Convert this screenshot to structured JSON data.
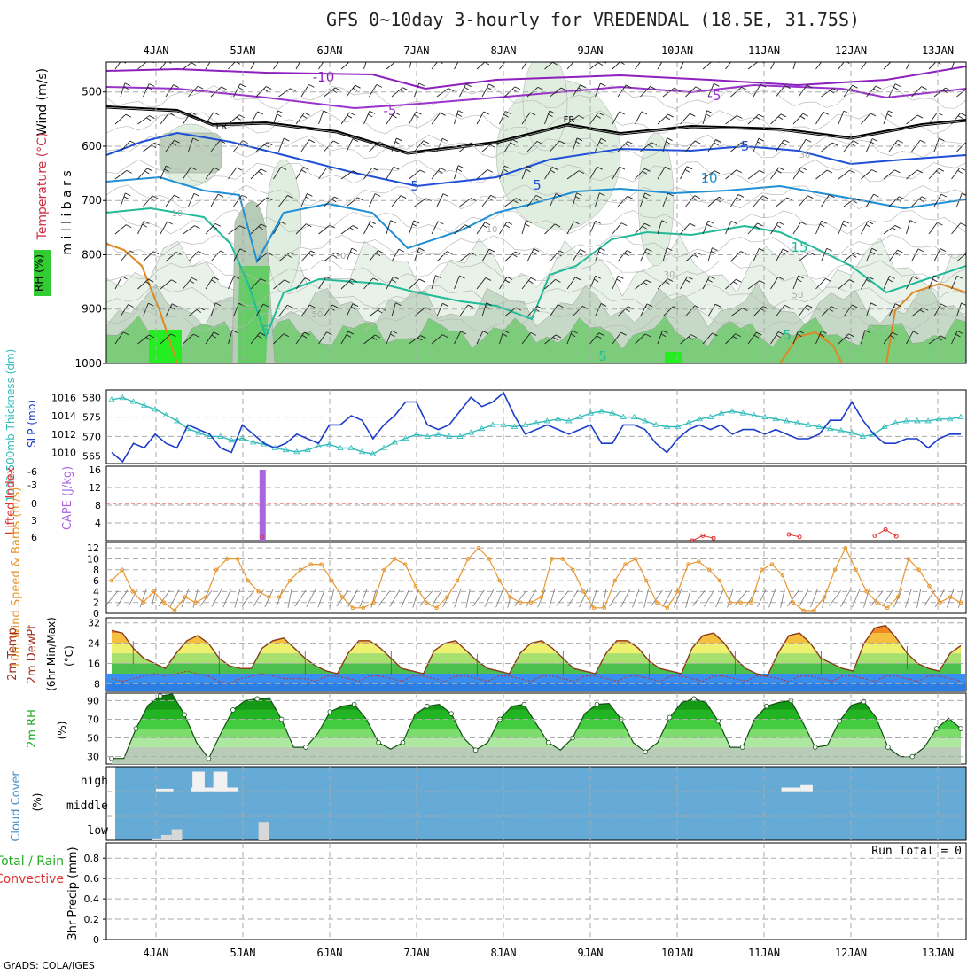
{
  "title": "GFS 0~10day 3-hourly for VREDENDAL (18.5E, 31.75S)",
  "footer": "GrADS: COLA/IGES",
  "date_labels": [
    "4JAN",
    "5JAN",
    "6JAN",
    "7JAN",
    "8JAN",
    "9JAN",
    "10JAN",
    "11JAN",
    "12JAN",
    "13JAN"
  ],
  "colors": {
    "grid": "#aaaaaa",
    "dark_blue": "#1a3cc8",
    "teal": "#33bbbb",
    "orange": "#e8962e",
    "purple": "#aa66dd",
    "red": "#e03030",
    "cloud": "#66aad6",
    "rh_green": "#22aa22"
  },
  "chart_data": [
    {
      "type": "heatmap",
      "name": "upper-air cross-section",
      "ylabel": "m i l l i b a r s",
      "side_labels": {
        "wind": "Wind (m/s)",
        "temperature": "Temperature (°C)",
        "rh": "RH (%)"
      },
      "y_ticks": [
        "500",
        "600",
        "700",
        "800",
        "900",
        "1000"
      ],
      "contour_labels": [
        "-10",
        "-5",
        "-5",
        "FR",
        "FR",
        "-5",
        "5",
        "5",
        "10",
        "10",
        "15",
        "5",
        "5",
        "5",
        "10",
        "30",
        "30",
        "50",
        "50",
        "30"
      ]
    },
    {
      "type": "line",
      "name": "SLP and 1000-500mb thickness",
      "ylabel_left": "1000-500mb Thickness (dm)",
      "ylabel_right": "SLP (mb)",
      "left_ticks": [
        "580",
        "575",
        "570",
        "565"
      ],
      "right_ticks": [
        "1016",
        "1014",
        "1012",
        "1010"
      ],
      "thickness_dm": [
        579.5,
        580,
        579,
        578,
        577,
        575.5,
        574,
        572,
        571,
        570,
        570,
        569,
        569.5,
        568.5,
        568,
        567,
        566.5,
        566,
        566.5,
        567.5,
        568,
        567,
        567,
        566,
        565.5,
        567,
        568.5,
        569.5,
        570.5,
        570,
        570.5,
        570,
        570,
        571,
        572,
        573,
        573,
        572.5,
        573,
        573.5,
        574,
        574.5,
        574,
        575,
        576,
        576.5,
        576,
        575,
        575,
        574,
        573,
        572.5,
        572.5,
        573.5,
        574.5,
        575,
        576,
        576.5,
        576,
        575.5,
        575,
        574.5,
        574,
        573.5,
        573,
        572.5,
        572,
        571.5,
        571,
        570,
        570.5,
        572.5,
        573.5,
        574,
        574,
        574,
        574.5,
        574.5,
        575
      ],
      "slp_mb": [
        1010,
        1009,
        1011,
        1010.5,
        1012,
        1011,
        1010.5,
        1013,
        1012.5,
        1012,
        1010.5,
        1010,
        1013,
        1012,
        1011,
        1010.5,
        1011,
        1012,
        1011.5,
        1011,
        1013,
        1013,
        1014,
        1013.5,
        1011.5,
        1013,
        1014,
        1015.5,
        1015.5,
        1013,
        1012.5,
        1013,
        1014.5,
        1016,
        1015,
        1015.5,
        1016.5,
        1014,
        1012,
        1012.5,
        1013,
        1012.5,
        1012,
        1012.5,
        1013,
        1011,
        1011,
        1013,
        1013,
        1012.5,
        1011,
        1010,
        1011.5,
        1012.5,
        1013,
        1012.5,
        1013,
        1012,
        1012.5,
        1012.5,
        1012,
        1012.5,
        1012,
        1011.5,
        1011.5,
        1012,
        1013.5,
        1013.5,
        1015.5,
        1013.5,
        1012,
        1011,
        1011,
        1011.5,
        1011.5,
        1010.5,
        1011.5,
        1012,
        1012
      ],
      "ylim_left": [
        563,
        582
      ],
      "ylim_right": [
        1008.8,
        1016.8
      ]
    },
    {
      "type": "bar",
      "name": "CAPE and Lifted Index",
      "ylabel_left": "Lifted Index",
      "ylabel_right": "CAPE (J/kg)",
      "left_ticks": [
        "-6",
        "-3",
        "0",
        "3",
        "6"
      ],
      "right_ticks": [
        "16",
        "12",
        "8",
        "4"
      ],
      "cape_bars": [
        {
          "time_index": 14,
          "value": 16
        }
      ],
      "lifted_index_points": [
        [
          54,
          6
        ],
        [
          55,
          5.2
        ],
        [
          56,
          5.6
        ],
        [
          63,
          5
        ],
        [
          64,
          5.4
        ],
        [
          71,
          5.2
        ],
        [
          72,
          4.2
        ],
        [
          73,
          5.3
        ]
      ],
      "ylim_cape": [
        0,
        16
      ]
    },
    {
      "type": "line",
      "name": "10m Wind Speed & Barbs",
      "ylabel": "10m Wind Speed & Barbs (m/s)",
      "y_ticks": [
        "12",
        "10",
        "8",
        "6",
        "4",
        "2",
        "0"
      ],
      "speed_ms": [
        6,
        8,
        4,
        2,
        4,
        2,
        0.5,
        3,
        2,
        3,
        8,
        10,
        10,
        6,
        4,
        3,
        3,
        6,
        8,
        9,
        9,
        6,
        3,
        1,
        1,
        2,
        8,
        10,
        9,
        5,
        2,
        1,
        3,
        6,
        10,
        12,
        10,
        6,
        3,
        2,
        2,
        3,
        10,
        10,
        8,
        4,
        1,
        1,
        6,
        9,
        10,
        6,
        2,
        1,
        4,
        9,
        9.5,
        8,
        6,
        2,
        2,
        2,
        8,
        9,
        7,
        2,
        0.5,
        0.5,
        3,
        8,
        12,
        8,
        4,
        2,
        1,
        3,
        10,
        8,
        5,
        2,
        3,
        2
      ],
      "ylim": [
        0,
        13
      ]
    },
    {
      "type": "area",
      "name": "2m Temp / 2m DewPt",
      "ylabel": "2m Temp 2m DewPt (6hr Min/Max) (°C)",
      "y_ticks": [
        "32",
        "24",
        "16",
        "8"
      ],
      "temp_c": [
        29,
        28,
        22,
        18,
        16,
        14,
        20,
        25,
        27,
        24,
        18,
        15,
        14,
        14,
        22,
        25,
        26,
        22,
        18,
        15,
        13,
        12,
        20,
        25,
        25,
        22,
        18,
        14,
        13,
        12,
        21,
        24,
        25,
        21,
        17,
        14,
        13,
        12,
        20,
        24,
        25,
        22,
        18,
        14,
        13,
        12,
        20,
        25,
        25,
        22,
        17,
        14,
        13,
        12,
        22,
        27,
        28,
        24,
        18,
        14,
        12,
        11,
        20,
        27,
        28,
        24,
        18,
        16,
        14,
        13,
        24,
        30,
        31,
        26,
        20,
        16,
        14,
        13,
        20,
        23
      ],
      "dewpt_c": [
        10,
        9,
        10,
        11,
        12,
        11,
        12,
        13,
        12,
        11,
        9,
        8,
        10,
        11,
        12,
        11,
        10,
        10,
        10,
        9,
        11,
        11,
        10,
        9,
        11,
        11,
        10,
        9,
        11,
        11,
        10,
        9,
        11,
        11,
        10,
        9,
        11,
        11,
        10,
        9,
        11,
        11,
        10,
        9,
        11,
        11,
        10,
        9,
        11,
        11,
        10,
        9,
        11,
        11,
        10,
        9,
        11,
        11,
        10,
        9,
        11,
        11,
        10,
        9,
        11,
        11,
        10,
        9,
        11,
        11,
        10,
        9,
        11,
        11,
        10,
        9,
        11,
        11,
        10,
        9
      ],
      "ylim": [
        5,
        34
      ]
    },
    {
      "type": "area",
      "name": "2m RH",
      "ylabel": "2m RH (%)",
      "y_ticks": [
        "90",
        "70",
        "50",
        "30"
      ],
      "rh_pct": [
        28,
        28,
        60,
        85,
        95,
        97,
        75,
        45,
        28,
        55,
        80,
        90,
        92,
        93,
        70,
        40,
        40,
        55,
        78,
        84,
        86,
        70,
        45,
        38,
        45,
        75,
        84,
        86,
        76,
        50,
        37,
        45,
        70,
        84,
        86,
        65,
        45,
        37,
        50,
        76,
        86,
        87,
        70,
        45,
        35,
        45,
        72,
        88,
        92,
        88,
        68,
        40,
        40,
        70,
        84,
        88,
        90,
        66,
        40,
        42,
        68,
        85,
        89,
        72,
        40,
        30,
        30,
        40,
        60,
        71,
        60
      ],
      "ylim": [
        22,
        98
      ]
    },
    {
      "type": "bar",
      "name": "Cloud Cover",
      "ylabel": "Cloud Cover (%)",
      "levels": [
        "high",
        "middle",
        "low"
      ],
      "high_bars": [
        {
          "from": 4.0,
          "to": 4.2,
          "pct": 10
        },
        {
          "from": 4.42,
          "to": 4.56,
          "pct": 80
        },
        {
          "from": 4.66,
          "to": 4.82,
          "pct": 80
        },
        {
          "from": 4.4,
          "to": 4.95,
          "pct": 15
        },
        {
          "from": 11.2,
          "to": 11.42,
          "pct": 15
        },
        {
          "from": 11.42,
          "to": 11.56,
          "pct": 25
        }
      ],
      "low_bars": [
        {
          "from": 3.95,
          "to": 4.06,
          "pct": 8
        },
        {
          "from": 4.06,
          "to": 4.18,
          "pct": 22
        },
        {
          "from": 4.18,
          "to": 4.3,
          "pct": 45
        },
        {
          "from": 5.18,
          "to": 5.3,
          "pct": 75
        }
      ]
    },
    {
      "type": "bar",
      "name": "3hr Precip",
      "ylabel": "3hr Precip (mm)",
      "legend": [
        "Total / Rain",
        "Convective"
      ],
      "annotation": "Run Total = 0",
      "y_ticks": [
        "0.8",
        "0.6",
        "0.4",
        "0.2",
        "0"
      ],
      "values": [],
      "ylim": [
        0,
        0.95
      ]
    }
  ]
}
